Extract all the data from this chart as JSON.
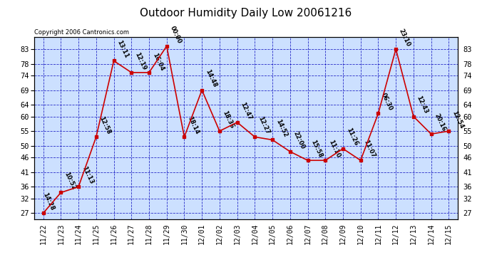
{
  "title": "Outdoor Humidity Daily Low 20061216",
  "copyright": "Copyright 2006 Cantronics.com",
  "background_color": "#ffffff",
  "plot_background": "#cce0ff",
  "grid_color": "#0000bb",
  "line_color": "#cc0000",
  "marker_color": "#cc0000",
  "text_color": "#000000",
  "dates": [
    "11/22",
    "11/23",
    "11/24",
    "11/25",
    "11/26",
    "11/27",
    "11/28",
    "11/29",
    "11/30",
    "12/01",
    "12/02",
    "12/03",
    "12/04",
    "12/05",
    "12/06",
    "12/07",
    "12/08",
    "12/09",
    "12/10",
    "12/11",
    "12/12",
    "12/13",
    "12/14",
    "12/15"
  ],
  "values": [
    27,
    34,
    36,
    53,
    79,
    75,
    75,
    84,
    53,
    69,
    55,
    58,
    53,
    52,
    48,
    45,
    45,
    49,
    45,
    61,
    83,
    60,
    54,
    55
  ],
  "labels": [
    "14:28",
    "10:52",
    "11:13",
    "12:58",
    "13:11",
    "12:19",
    "16:04",
    "00:00",
    "18:14",
    "14:48",
    "18:36",
    "12:47",
    "12:27",
    "14:52",
    "22:00",
    "15:58",
    "11:10",
    "11:26",
    "11:07",
    "06:30",
    "23:10",
    "12:43",
    "20:16",
    "12:54"
  ],
  "ylim_min": 25,
  "ylim_max": 87,
  "yticks": [
    27,
    32,
    36,
    41,
    46,
    50,
    55,
    60,
    64,
    69,
    74,
    78,
    83
  ]
}
